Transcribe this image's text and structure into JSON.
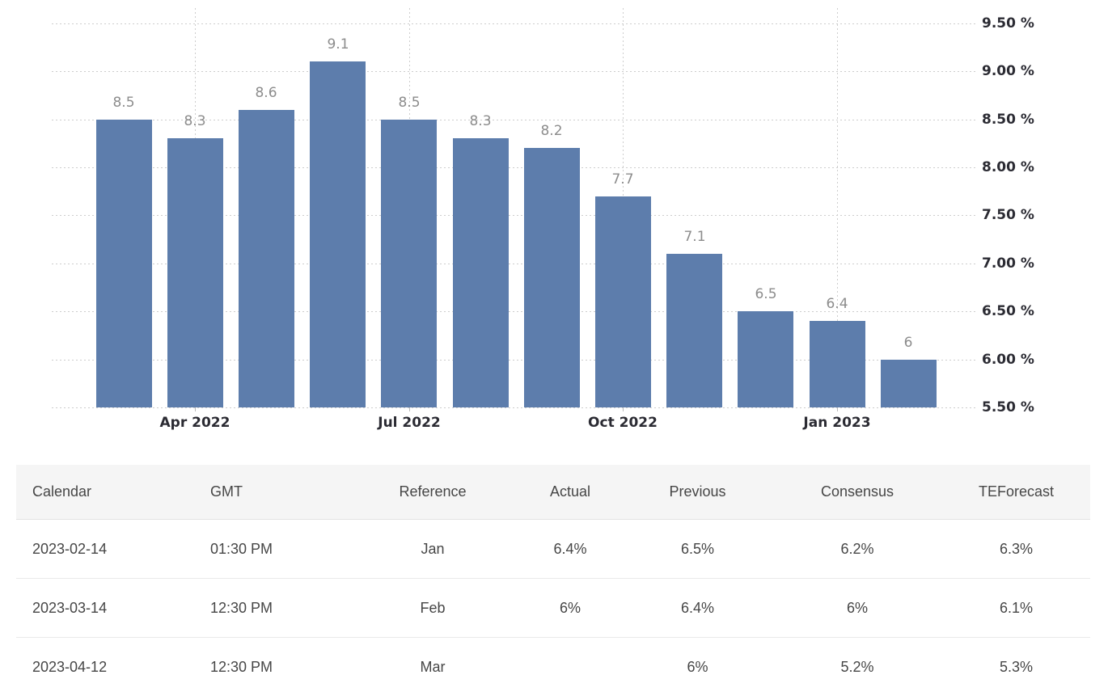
{
  "chart_data": {
    "type": "bar",
    "values": [
      8.5,
      8.3,
      8.6,
      9.1,
      8.5,
      8.3,
      8.2,
      7.7,
      7.1,
      6.5,
      6.4,
      6
    ],
    "bar_labels": [
      "8.5",
      "8.3",
      "8.6",
      "9.1",
      "8.5",
      "8.3",
      "8.2",
      "7.7",
      "7.1",
      "6.5",
      "6.4",
      "6"
    ],
    "x_tick_labels": [
      "Apr 2022",
      "Jul 2022",
      "Oct 2022",
      "Jan 2023"
    ],
    "x_tick_bar_index": [
      1,
      4,
      7,
      10
    ],
    "y_tick_values": [
      9.5,
      9.0,
      8.5,
      8.0,
      7.5,
      7.0,
      6.5,
      6.0,
      5.5
    ],
    "y_tick_labels": [
      "9.50 %",
      "9.00 %",
      "8.50 %",
      "8.00 %",
      "7.50 %",
      "7.00 %",
      "6.50 %",
      "6.00 %",
      "5.50 %"
    ],
    "ylim": [
      5.5,
      9.7
    ],
    "grid": "dotted",
    "legend": "none",
    "colors": {
      "bar": "#5D7DAC",
      "bar_label": "#8C8C8C",
      "axis_label": "#2B2B33",
      "grid": "#CDCDCD"
    }
  },
  "table": {
    "headers": [
      "Calendar",
      "GMT",
      "Reference",
      "Actual",
      "Previous",
      "Consensus",
      "TEForecast"
    ],
    "rows": [
      [
        "2023-02-14",
        "01:30 PM",
        "Jan",
        "6.4%",
        "6.5%",
        "6.2%",
        "6.3%"
      ],
      [
        "2023-03-14",
        "12:30 PM",
        "Feb",
        "6%",
        "6.4%",
        "6%",
        "6.1%"
      ],
      [
        "2023-04-12",
        "12:30 PM",
        "Mar",
        "",
        "6%",
        "5.2%",
        "5.3%"
      ]
    ]
  }
}
